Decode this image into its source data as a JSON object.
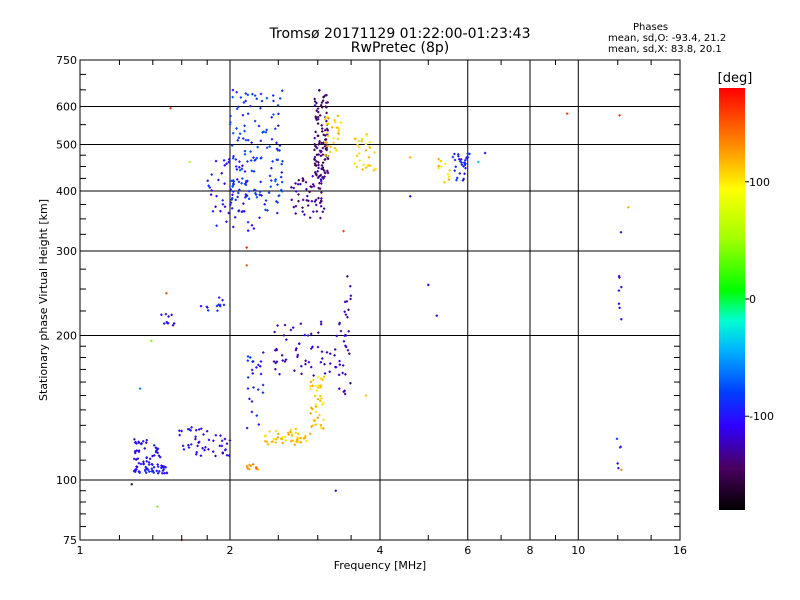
{
  "header": {
    "title_line1": "Tromsø 20171129 01:22:00-01:23:43",
    "title_line2": "RwPretec (8p)"
  },
  "phase_info": {
    "heading": "Phases",
    "line_o": "mean, sd,O: -93.4, 21.2",
    "line_x": "mean, sd,X: 83.8, 20.1"
  },
  "colorbar": {
    "unit": "[deg]",
    "tick_labels": [
      "100",
      "0",
      "-100"
    ],
    "tick_values": [
      100,
      0,
      -100
    ],
    "range": [
      -180,
      180
    ]
  },
  "chart_data": {
    "type": "scatter",
    "xlabel": "Frequency [MHz]",
    "ylabel": "Stationary phase Virtual Height [km]",
    "x_scale": "log",
    "y_scale": "log",
    "xlim": [
      1,
      16
    ],
    "ylim": [
      75,
      750
    ],
    "x_ticks": [
      1,
      2,
      4,
      6,
      8,
      10,
      16
    ],
    "x_tick_labels": [
      "1",
      "2",
      "4",
      "6",
      "8",
      "10",
      "16"
    ],
    "y_ticks": [
      75,
      100,
      200,
      300,
      400,
      500,
      600,
      750
    ],
    "y_tick_labels": [
      "75",
      "100",
      "200",
      "300",
      "400",
      "500",
      "600",
      "750"
    ],
    "grid": true,
    "color_encoding": "phase [deg]",
    "clusters": [
      {
        "x_range": [
          1.28,
          1.5
        ],
        "y_range": [
          103,
          108
        ],
        "phase": -100,
        "count": 45
      },
      {
        "x_range": [
          1.28,
          1.45
        ],
        "y_range": [
          108,
          122
        ],
        "phase": -105,
        "count": 40
      },
      {
        "x_range": [
          1.58,
          1.68
        ],
        "y_range": [
          115,
          130
        ],
        "phase": -100,
        "count": 12
      },
      {
        "x_range": [
          1.7,
          2.0
        ],
        "y_range": [
          112,
          128
        ],
        "phase": -110,
        "count": 35
      },
      {
        "x_range": [
          2.15,
          2.3
        ],
        "y_range": [
          105,
          108
        ],
        "phase": 130,
        "count": 12
      },
      {
        "x_range": [
          2.15,
          2.35
        ],
        "y_range": [
          128,
          185
        ],
        "phase": -95,
        "count": 25
      },
      {
        "x_range": [
          2.35,
          2.9
        ],
        "y_range": [
          118,
          128
        ],
        "phase": 115,
        "count": 45
      },
      {
        "x_range": [
          2.9,
          3.1
        ],
        "y_range": [
          125,
          165
        ],
        "phase": 112,
        "count": 45
      },
      {
        "x_range": [
          2.45,
          3.45
        ],
        "y_range": [
          165,
          215
        ],
        "phase": -120,
        "count": 70
      },
      {
        "x_range": [
          3.3,
          3.5
        ],
        "y_range": [
          150,
          275
        ],
        "phase": -125,
        "count": 20
      },
      {
        "x_range": [
          1.45,
          1.55
        ],
        "y_range": [
          210,
          222
        ],
        "phase": -100,
        "count": 10
      },
      {
        "x_range": [
          1.7,
          1.95
        ],
        "y_range": [
          225,
          240
        ],
        "phase": -95,
        "count": 12
      },
      {
        "x_range": [
          1.8,
          2.25
        ],
        "y_range": [
          330,
          470
        ],
        "phase": -100,
        "count": 55
      },
      {
        "x_range": [
          2.0,
          2.55
        ],
        "y_range": [
          350,
          650
        ],
        "phase": -85,
        "count": 140
      },
      {
        "x_range": [
          2.65,
          3.1
        ],
        "y_range": [
          350,
          430
        ],
        "phase": -130,
        "count": 60
      },
      {
        "x_range": [
          2.95,
          3.15
        ],
        "y_range": [
          430,
          650
        ],
        "phase": -140,
        "count": 110
      },
      {
        "x_range": [
          3.1,
          3.35
        ],
        "y_range": [
          470,
          580
        ],
        "phase": 110,
        "count": 30
      },
      {
        "x_range": [
          3.55,
          3.95
        ],
        "y_range": [
          440,
          530
        ],
        "phase": 108,
        "count": 30
      },
      {
        "x_range": [
          5.2,
          5.55
        ],
        "y_range": [
          410,
          470
        ],
        "phase": 110,
        "count": 12
      },
      {
        "x_range": [
          5.6,
          6.05
        ],
        "y_range": [
          410,
          480
        ],
        "phase": -95,
        "count": 30
      },
      {
        "x_range": [
          12.0,
          12.3
        ],
        "y_range": [
          200,
          400
        ],
        "phase": -110,
        "count": 8
      },
      {
        "x_range": [
          11.8,
          12.3
        ],
        "y_range": [
          105,
          125
        ],
        "phase": -95,
        "count": 5
      }
    ],
    "outliers": [
      {
        "x": 1.52,
        "y": 595,
        "phase": 160
      },
      {
        "x": 1.39,
        "y": 195,
        "phase": 40
      },
      {
        "x": 1.32,
        "y": 155,
        "phase": -60
      },
      {
        "x": 1.43,
        "y": 88,
        "phase": 40
      },
      {
        "x": 1.6,
        "y": 75,
        "phase": 170
      },
      {
        "x": 1.49,
        "y": 245,
        "phase": 150
      },
      {
        "x": 1.27,
        "y": 98,
        "phase": -150
      },
      {
        "x": 1.66,
        "y": 460,
        "phase": 60
      },
      {
        "x": 2.16,
        "y": 280,
        "phase": 150
      },
      {
        "x": 2.16,
        "y": 305,
        "phase": 170
      },
      {
        "x": 3.38,
        "y": 330,
        "phase": 160
      },
      {
        "x": 3.26,
        "y": 95,
        "phase": -100
      },
      {
        "x": 3.75,
        "y": 150,
        "phase": 110
      },
      {
        "x": 4.6,
        "y": 470,
        "phase": 120
      },
      {
        "x": 4.6,
        "y": 390,
        "phase": -110
      },
      {
        "x": 5.0,
        "y": 255,
        "phase": -110
      },
      {
        "x": 5.2,
        "y": 220,
        "phase": -120
      },
      {
        "x": 6.3,
        "y": 460,
        "phase": -40
      },
      {
        "x": 6.5,
        "y": 480,
        "phase": -110
      },
      {
        "x": 9.5,
        "y": 580,
        "phase": 160
      },
      {
        "x": 12.1,
        "y": 575,
        "phase": 160
      },
      {
        "x": 12.6,
        "y": 370,
        "phase": 120
      },
      {
        "x": 12.2,
        "y": 105,
        "phase": 130
      }
    ]
  }
}
